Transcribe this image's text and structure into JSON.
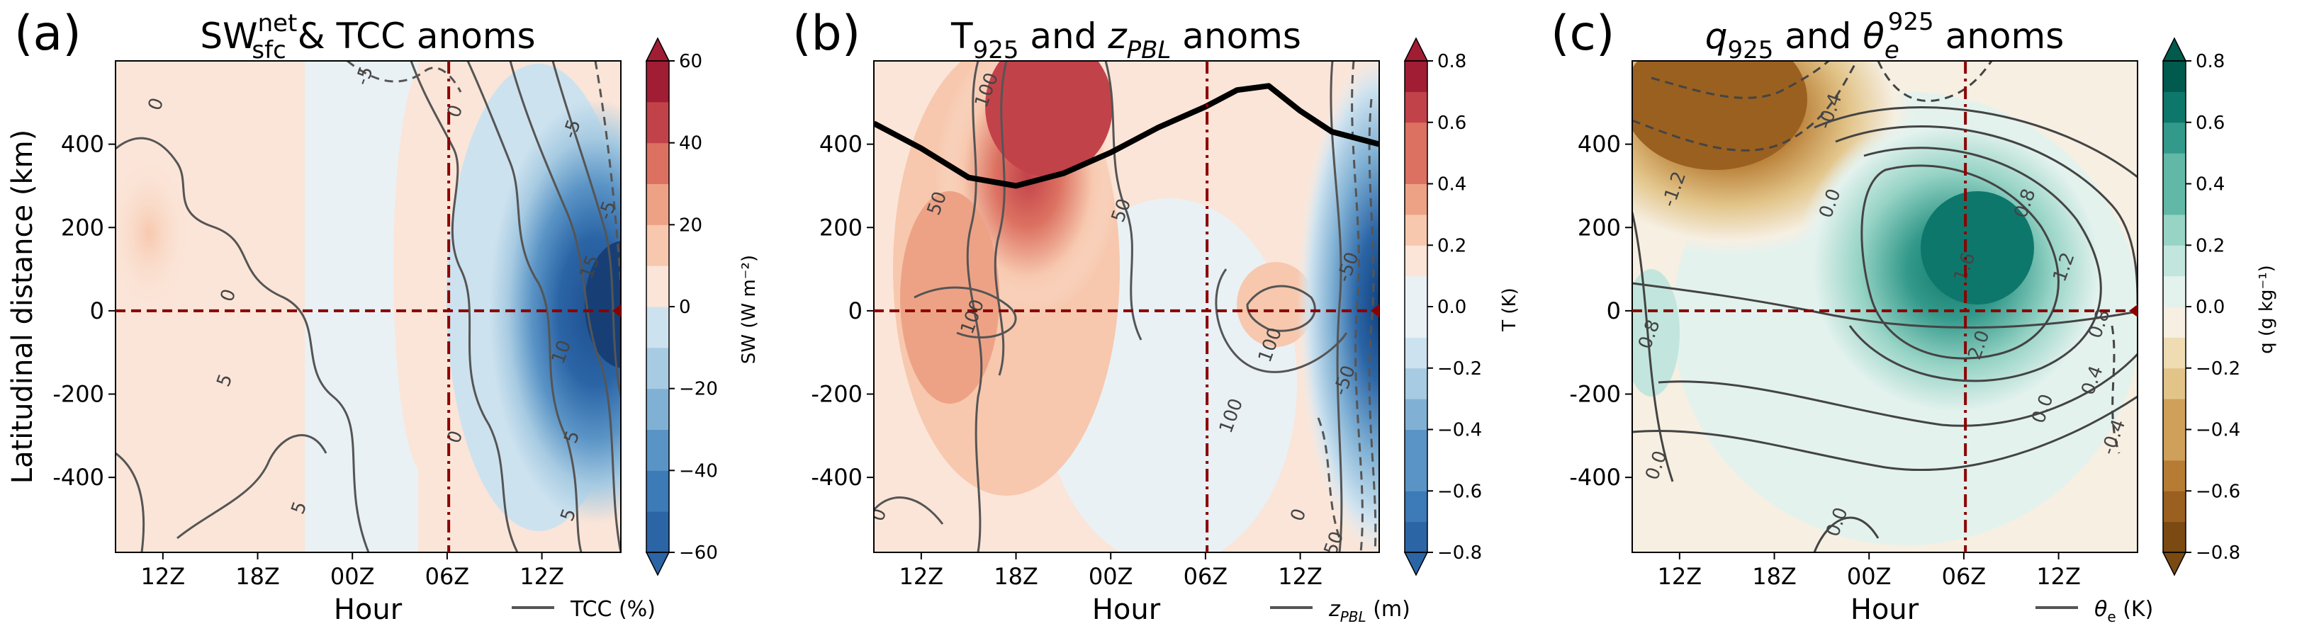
{
  "figure": {
    "y_label": "Latitudinal distance (km)",
    "x_label": "Hour"
  },
  "chart_data": [
    {
      "type": "heatmap",
      "panel_label": "(a)",
      "title_main": "SW",
      "title_sup": "net",
      "title_sub": "sfc",
      "title_rest": " & TCC anoms",
      "xlabel": "Hour",
      "ylabel": "Latitudinal distance (km)",
      "x_ticks": [
        "12Z",
        "18Z",
        "00Z",
        "06Z",
        "12Z"
      ],
      "x_tick_hours": [
        12,
        18,
        24,
        30,
        36
      ],
      "xlim": [
        9,
        41
      ],
      "y_ticks": [
        "400",
        "200",
        "0",
        "-200",
        "-400"
      ],
      "y_tick_values": [
        400,
        200,
        0,
        -200,
        -400
      ],
      "ylim": [
        -580,
        600
      ],
      "reference_hour": 30.1,
      "reference_y": 0,
      "legend_label": "TCC (%)",
      "colorbar": {
        "label": "SW (W m⁻²)",
        "ticks": [
          "60",
          "40",
          "20",
          "0",
          "−20",
          "−40",
          "−60"
        ],
        "tick_values": [
          60,
          40,
          20,
          0,
          -20,
          -40,
          -60
        ],
        "range": [
          -60,
          60
        ],
        "levels": 12,
        "cmap": "RdBu_r",
        "colors": [
          "#2b65a6",
          "#3c7ab8",
          "#5a94c6",
          "#80b1d4",
          "#a7cbe2",
          "#cde2ef",
          "#e9f1f5",
          "#fbe5d8",
          "#f7c8ae",
          "#eea285",
          "#dc7161",
          "#c2424a",
          "#a01d34"
        ]
      },
      "contour_labels": [
        "0",
        "-5",
        "0",
        "5",
        "5",
        "-5",
        "0",
        "10",
        "15",
        "5",
        "5",
        "0",
        "-5"
      ]
    },
    {
      "type": "heatmap",
      "panel_label": "(b)",
      "title_main": "T",
      "title_sub": "925",
      "title_rest_a": " and ",
      "title_var": "z",
      "title_var_sub": "PBL",
      "title_rest_b": " anoms",
      "xlabel": "Hour",
      "x_ticks": [
        "12Z",
        "18Z",
        "00Z",
        "06Z",
        "12Z"
      ],
      "x_tick_hours": [
        12,
        18,
        24,
        30,
        36
      ],
      "xlim": [
        9,
        41
      ],
      "y_ticks": [
        "400",
        "200",
        "0",
        "-200",
        "-400"
      ],
      "y_tick_values": [
        400,
        200,
        0,
        -200,
        -400
      ],
      "ylim": [
        -580,
        600
      ],
      "reference_hour": 30.1,
      "reference_y": 0,
      "legend_label_var": "z",
      "legend_label_sub": "PBL",
      "legend_label_unit": " (m)",
      "colorbar": {
        "label": "T (K)",
        "ticks": [
          "0.8",
          "0.6",
          "0.4",
          "0.2",
          "0.0",
          "−0.2",
          "−0.4",
          "−0.6",
          "−0.8"
        ],
        "tick_values": [
          0.8,
          0.6,
          0.4,
          0.2,
          0.0,
          -0.2,
          -0.4,
          -0.6,
          -0.8
        ],
        "range": [
          -0.8,
          0.8
        ],
        "levels": 16,
        "cmap": "RdBu_r",
        "colors": [
          "#2b65a6",
          "#3c7ab8",
          "#5a94c6",
          "#80b1d4",
          "#a7cbe2",
          "#cde2ef",
          "#e9f1f5",
          "#fbe5d8",
          "#f7c8ae",
          "#eea285",
          "#dc7161",
          "#c2424a",
          "#a01d34"
        ]
      },
      "thick_line": {
        "x": [
          9,
          12,
          15,
          18,
          21,
          24,
          27,
          30,
          32,
          34,
          36,
          38,
          41
        ],
        "y": [
          450,
          390,
          320,
          300,
          330,
          380,
          440,
          490,
          530,
          540,
          480,
          430,
          400
        ]
      },
      "contour_labels": [
        "100",
        "50",
        "100",
        "50",
        "-50",
        "0",
        "100",
        "50",
        "-50",
        "100",
        "0",
        "50"
      ]
    },
    {
      "type": "heatmap",
      "panel_label": "(c)",
      "title_var": "q",
      "title_sub": "925",
      "title_rest_a": " and ",
      "title_var2": "θ",
      "title_var2_sub": "e",
      "title_var2_sup": "925",
      "title_rest_b": " anoms",
      "xlabel": "Hour",
      "x_ticks": [
        "12Z",
        "18Z",
        "00Z",
        "06Z",
        "12Z"
      ],
      "x_tick_hours": [
        12,
        18,
        24,
        30,
        36
      ],
      "xlim": [
        9,
        41
      ],
      "y_ticks": [
        "400",
        "200",
        "0",
        "-200",
        "-400"
      ],
      "y_tick_values": [
        400,
        200,
        0,
        -200,
        -400
      ],
      "ylim": [
        -580,
        600
      ],
      "reference_hour": 30.1,
      "reference_y": 0,
      "legend_label_var": "θ",
      "legend_label_sub": "e",
      "legend_label_unit": " (K)",
      "colorbar": {
        "label": "q (g kg⁻¹)",
        "ticks": [
          "0.8",
          "0.6",
          "0.4",
          "0.2",
          "0.0",
          "−0.2",
          "−0.4",
          "−0.6",
          "−0.8"
        ],
        "tick_values": [
          0.8,
          0.6,
          0.4,
          0.2,
          0.0,
          -0.2,
          -0.4,
          -0.6,
          -0.8
        ],
        "range": [
          -0.8,
          0.8
        ],
        "levels": 16,
        "cmap": "BrBG",
        "colors": [
          "#7a4a12",
          "#9a6020",
          "#b77c33",
          "#cfa05a",
          "#e2c489",
          "#efdcb3",
          "#f6efe2",
          "#e4f2ee",
          "#c2e6dd",
          "#97d4c6",
          "#62b8a7",
          "#33998a",
          "#0e776b",
          "#005a4e"
        ]
      },
      "contour_labels": [
        "-1.2",
        "-0.4",
        "0.0",
        "0.8",
        "0.8",
        "1.6",
        "2.0",
        "1.2",
        "0.8",
        "0.4",
        "0.0",
        "-0.4",
        "0.0",
        "0.0"
      ]
    }
  ]
}
